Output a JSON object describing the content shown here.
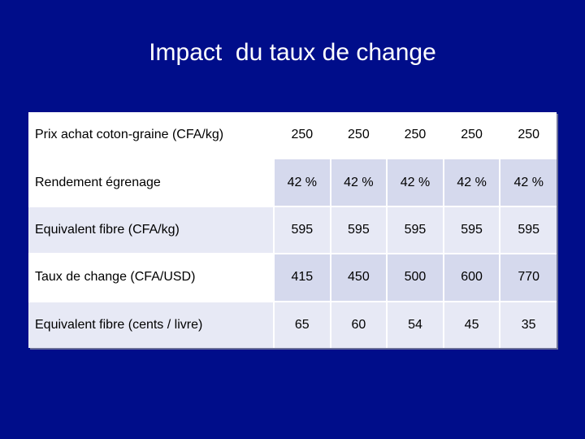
{
  "slide": {
    "title": "Impact  du taux de change"
  },
  "table": {
    "rows": [
      {
        "label": "Prix achat coton-graine (CFA/kg)",
        "values": [
          "250",
          "250",
          "250",
          "250",
          "250"
        ]
      },
      {
        "label": "Rendement égrenage",
        "values": [
          "42 %",
          "42 %",
          "42 %",
          "42 %",
          "42 %"
        ]
      },
      {
        "label": "Equivalent fibre (CFA/kg)",
        "values": [
          "595",
          "595",
          "595",
          "595",
          "595"
        ]
      },
      {
        "label": "Taux de change (CFA/USD)",
        "values": [
          "415",
          "450",
          "500",
          "600",
          "770"
        ]
      },
      {
        "label": "Equivalent fibre (cents / livre)",
        "values": [
          "65",
          "60",
          "54",
          "45",
          "35"
        ]
      }
    ]
  }
}
